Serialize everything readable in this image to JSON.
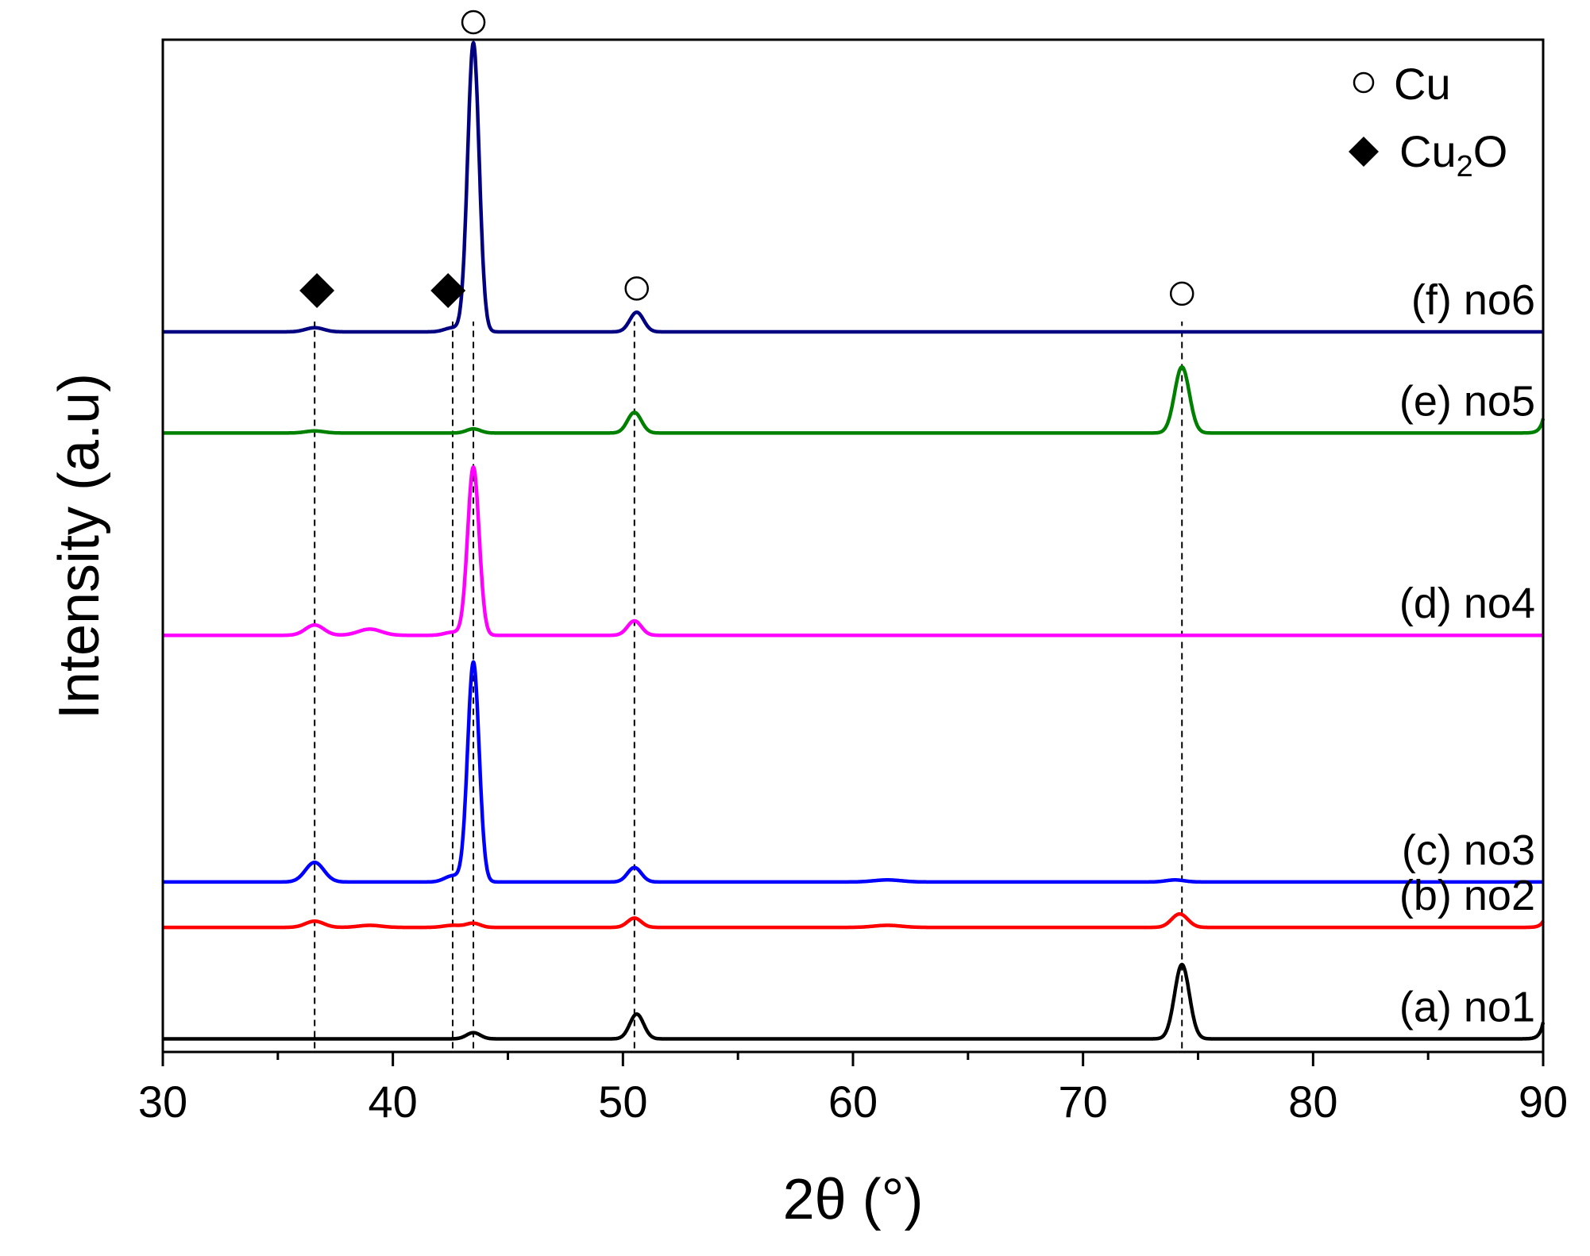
{
  "chart_data": {
    "type": "line",
    "title": "",
    "xlabel": "2θ (°)",
    "ylabel": "Intensity (a.u)",
    "xlim": [
      30,
      90
    ],
    "ylim": [
      0,
      1.0
    ],
    "x_ticks": [
      30,
      40,
      50,
      60,
      70,
      80,
      90
    ],
    "x_tick_labels": [
      "30",
      "40",
      "50",
      "60",
      "70",
      "80",
      "90"
    ],
    "x_minor_ticks": [
      35,
      45,
      55,
      65,
      75,
      85
    ],
    "y_ticks_shown": false,
    "legend": {
      "position": "top-right",
      "entries": [
        {
          "marker": "open-circle",
          "label": "Cu",
          "label_main": "Cu",
          "label_sub": ""
        },
        {
          "marker": "filled-diamond",
          "label": "Cu2O",
          "label_main": "Cu",
          "label_sub": "2",
          "label_tail": "O"
        }
      ]
    },
    "reference_lines_x": [
      36.6,
      42.6,
      43.5,
      50.5,
      74.3
    ],
    "markers": [
      {
        "type": "filled-diamond",
        "x": 36.7,
        "y": 0.73
      },
      {
        "type": "filled-diamond",
        "x": 42.4,
        "y": 0.73
      },
      {
        "type": "open-circle",
        "x": 43.5,
        "y": 0.99
      },
      {
        "type": "open-circle",
        "x": 50.6,
        "y": 0.732
      },
      {
        "type": "open-circle",
        "x": 74.3,
        "y": 0.727
      }
    ],
    "series": [
      {
        "name": "(a) no1",
        "label": "(a) no1",
        "color": "#000000",
        "baseline": 0.005,
        "end_rise": 0.016,
        "peaks": [
          {
            "x": 43.5,
            "h": 0.006,
            "w": 0.3
          },
          {
            "x": 50.6,
            "h": 0.024,
            "w": 0.3
          },
          {
            "x": 74.3,
            "h": 0.072,
            "w": 0.32
          }
        ]
      },
      {
        "name": "(b) no2",
        "label": "(b) no2",
        "color": "#ff0000",
        "baseline": 0.113,
        "end_rise": 0.006,
        "peaks": [
          {
            "x": 36.6,
            "h": 0.006,
            "w": 0.4
          },
          {
            "x": 39.0,
            "h": 0.002,
            "w": 0.5
          },
          {
            "x": 42.6,
            "h": 0.002,
            "w": 0.4
          },
          {
            "x": 43.5,
            "h": 0.004,
            "w": 0.3
          },
          {
            "x": 50.5,
            "h": 0.009,
            "w": 0.3
          },
          {
            "x": 61.5,
            "h": 0.002,
            "w": 0.6
          },
          {
            "x": 74.2,
            "h": 0.013,
            "w": 0.35
          }
        ]
      },
      {
        "name": "(c) no3",
        "label": "(c) no3",
        "color": "#0000ff",
        "baseline": 0.157,
        "peaks": [
          {
            "x": 36.6,
            "h": 0.019,
            "w": 0.4
          },
          {
            "x": 42.6,
            "h": 0.006,
            "w": 0.35
          },
          {
            "x": 43.5,
            "h": 0.213,
            "w": 0.25
          },
          {
            "x": 50.5,
            "h": 0.014,
            "w": 0.3
          },
          {
            "x": 61.5,
            "h": 0.002,
            "w": 0.6
          },
          {
            "x": 74.0,
            "h": 0.002,
            "w": 0.4
          }
        ]
      },
      {
        "name": "(d) no4",
        "label": "(d) no4",
        "color": "#ff00ff",
        "baseline": 0.396,
        "peaks": [
          {
            "x": 36.6,
            "h": 0.01,
            "w": 0.4
          },
          {
            "x": 39.0,
            "h": 0.006,
            "w": 0.5
          },
          {
            "x": 42.6,
            "h": 0.003,
            "w": 0.35
          },
          {
            "x": 43.5,
            "h": 0.163,
            "w": 0.25
          },
          {
            "x": 50.5,
            "h": 0.014,
            "w": 0.3
          }
        ]
      },
      {
        "name": "(e) no5",
        "label": "(e) no5",
        "color": "#008000",
        "baseline": 0.592,
        "end_rise": 0.014,
        "peaks": [
          {
            "x": 36.6,
            "h": 0.002,
            "w": 0.4
          },
          {
            "x": 43.5,
            "h": 0.004,
            "w": 0.3
          },
          {
            "x": 50.5,
            "h": 0.02,
            "w": 0.3
          },
          {
            "x": 74.3,
            "h": 0.064,
            "w": 0.32
          }
        ]
      },
      {
        "name": "(f) no6",
        "label": "(f) no6",
        "color": "#000080",
        "baseline": 0.69,
        "peaks": [
          {
            "x": 36.6,
            "h": 0.004,
            "w": 0.4
          },
          {
            "x": 42.6,
            "h": 0.004,
            "w": 0.35
          },
          {
            "x": 43.5,
            "h": 0.28,
            "w": 0.25
          },
          {
            "x": 50.6,
            "h": 0.019,
            "w": 0.3
          }
        ]
      }
    ]
  }
}
